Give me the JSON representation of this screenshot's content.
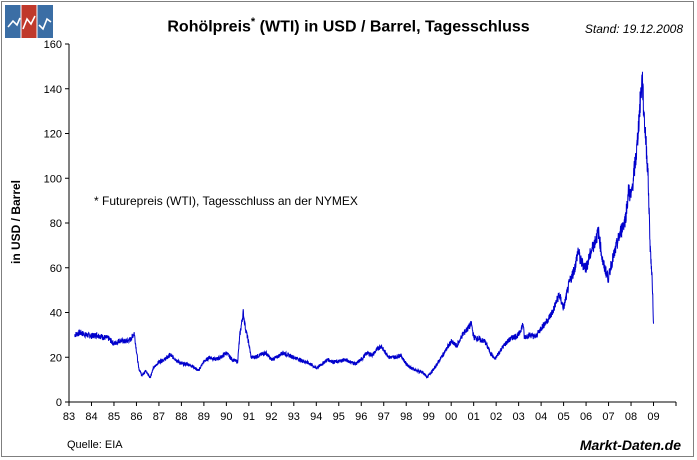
{
  "header": {
    "title_main": "Rohölpreis",
    "title_sup": "*",
    "title_rest": " (WTI) in USD / Barrel, Tagesschluss",
    "stand": "Stand: 19.12.2008"
  },
  "footer": {
    "source": "Quelle: EIA",
    "brand": "Markt-Daten.de"
  },
  "logo_icon": "chart-logo-icon",
  "chart_data": {
    "type": "line",
    "title": "Rohölpreis* (WTI) in USD / Barrel, Tagesschluss",
    "annotation": "* Futurepreis (WTI), Tagesschluss an der NYMEX",
    "xlabel": "",
    "ylabel": "in USD / Barrel",
    "ylim": [
      0,
      160
    ],
    "yticks": [
      0,
      20,
      40,
      60,
      80,
      100,
      120,
      140,
      160
    ],
    "xlim": [
      1983,
      2010
    ],
    "xticks": [
      {
        "value": 1983,
        "label": "83"
      },
      {
        "value": 1984,
        "label": "84"
      },
      {
        "value": 1985,
        "label": "85"
      },
      {
        "value": 1986,
        "label": "86"
      },
      {
        "value": 1987,
        "label": "87"
      },
      {
        "value": 1988,
        "label": "88"
      },
      {
        "value": 1989,
        "label": "89"
      },
      {
        "value": 1990,
        "label": "90"
      },
      {
        "value": 1991,
        "label": "91"
      },
      {
        "value": 1992,
        "label": "92"
      },
      {
        "value": 1993,
        "label": "93"
      },
      {
        "value": 1994,
        "label": "94"
      },
      {
        "value": 1995,
        "label": "95"
      },
      {
        "value": 1996,
        "label": "96"
      },
      {
        "value": 1997,
        "label": "97"
      },
      {
        "value": 1998,
        "label": "98"
      },
      {
        "value": 1999,
        "label": "99"
      },
      {
        "value": 2000,
        "label": "00"
      },
      {
        "value": 2001,
        "label": "01"
      },
      {
        "value": 2002,
        "label": "02"
      },
      {
        "value": 2003,
        "label": "03"
      },
      {
        "value": 2004,
        "label": "04"
      },
      {
        "value": 2005,
        "label": "05"
      },
      {
        "value": 2006,
        "label": "06"
      },
      {
        "value": 2007,
        "label": "07"
      },
      {
        "value": 2008,
        "label": "08"
      },
      {
        "value": 2009,
        "label": "09"
      }
    ],
    "grid": false,
    "series": [
      {
        "name": "WTI",
        "color": "#0000cc",
        "x": [
          1983.25,
          1983.5,
          1983.75,
          1984.0,
          1984.25,
          1984.5,
          1984.75,
          1985.0,
          1985.25,
          1985.5,
          1985.75,
          1985.9,
          1986.0,
          1986.1,
          1986.25,
          1986.4,
          1986.6,
          1986.75,
          1987.0,
          1987.25,
          1987.5,
          1987.75,
          1988.0,
          1988.25,
          1988.5,
          1988.75,
          1989.0,
          1989.25,
          1989.5,
          1989.75,
          1990.0,
          1990.25,
          1990.5,
          1990.6,
          1990.75,
          1990.85,
          1991.0,
          1991.1,
          1991.25,
          1991.5,
          1991.75,
          1992.0,
          1992.25,
          1992.5,
          1992.75,
          1993.0,
          1993.25,
          1993.5,
          1993.75,
          1994.0,
          1994.25,
          1994.5,
          1994.75,
          1995.0,
          1995.25,
          1995.5,
          1995.75,
          1996.0,
          1996.25,
          1996.5,
          1996.75,
          1996.9,
          1997.0,
          1997.25,
          1997.5,
          1997.75,
          1998.0,
          1998.25,
          1998.5,
          1998.75,
          1998.95,
          1999.0,
          1999.25,
          1999.5,
          1999.75,
          2000.0,
          2000.25,
          2000.5,
          2000.75,
          2000.9,
          2001.0,
          2001.25,
          2001.5,
          2001.75,
          2001.95,
          2002.0,
          2002.25,
          2002.5,
          2002.75,
          2003.0,
          2003.2,
          2003.25,
          2003.5,
          2003.75,
          2004.0,
          2004.25,
          2004.5,
          2004.8,
          2005.0,
          2005.25,
          2005.5,
          2005.65,
          2005.75,
          2006.0,
          2006.25,
          2006.55,
          2006.75,
          2007.0,
          2007.1,
          2007.25,
          2007.5,
          2007.75,
          2007.9,
          2008.0,
          2008.1,
          2008.25,
          2008.4,
          2008.5,
          2008.55,
          2008.65,
          2008.75,
          2008.85,
          2008.95,
          2009.0
        ],
        "values": [
          30,
          31,
          30,
          29.5,
          30,
          29,
          28.5,
          26,
          27.5,
          27,
          28,
          31,
          23,
          15,
          12,
          14,
          11,
          15,
          18,
          19,
          21,
          19,
          17,
          17,
          16,
          14,
          18,
          20,
          19,
          20,
          22,
          19,
          18,
          30,
          40,
          33,
          26,
          20,
          20,
          21,
          22,
          19,
          20,
          22,
          21,
          20,
          19,
          18,
          17,
          15,
          17,
          19,
          18,
          18,
          19,
          18,
          17,
          19,
          22,
          21,
          24,
          25,
          23,
          20,
          20,
          21,
          17,
          15,
          14,
          13,
          11,
          12,
          15,
          19,
          23,
          27,
          25,
          30,
          33,
          35,
          29,
          28,
          27,
          22,
          19,
          20,
          24,
          27,
          29,
          30,
          35,
          29,
          30,
          29,
          33,
          36,
          40,
          48,
          42,
          53,
          60,
          68,
          63,
          60,
          68,
          76,
          62,
          55,
          61,
          66,
          75,
          82,
          95,
          91,
          100,
          112,
          133,
          145,
          133,
          118,
          103,
          70,
          52,
          35
        ]
      }
    ]
  }
}
